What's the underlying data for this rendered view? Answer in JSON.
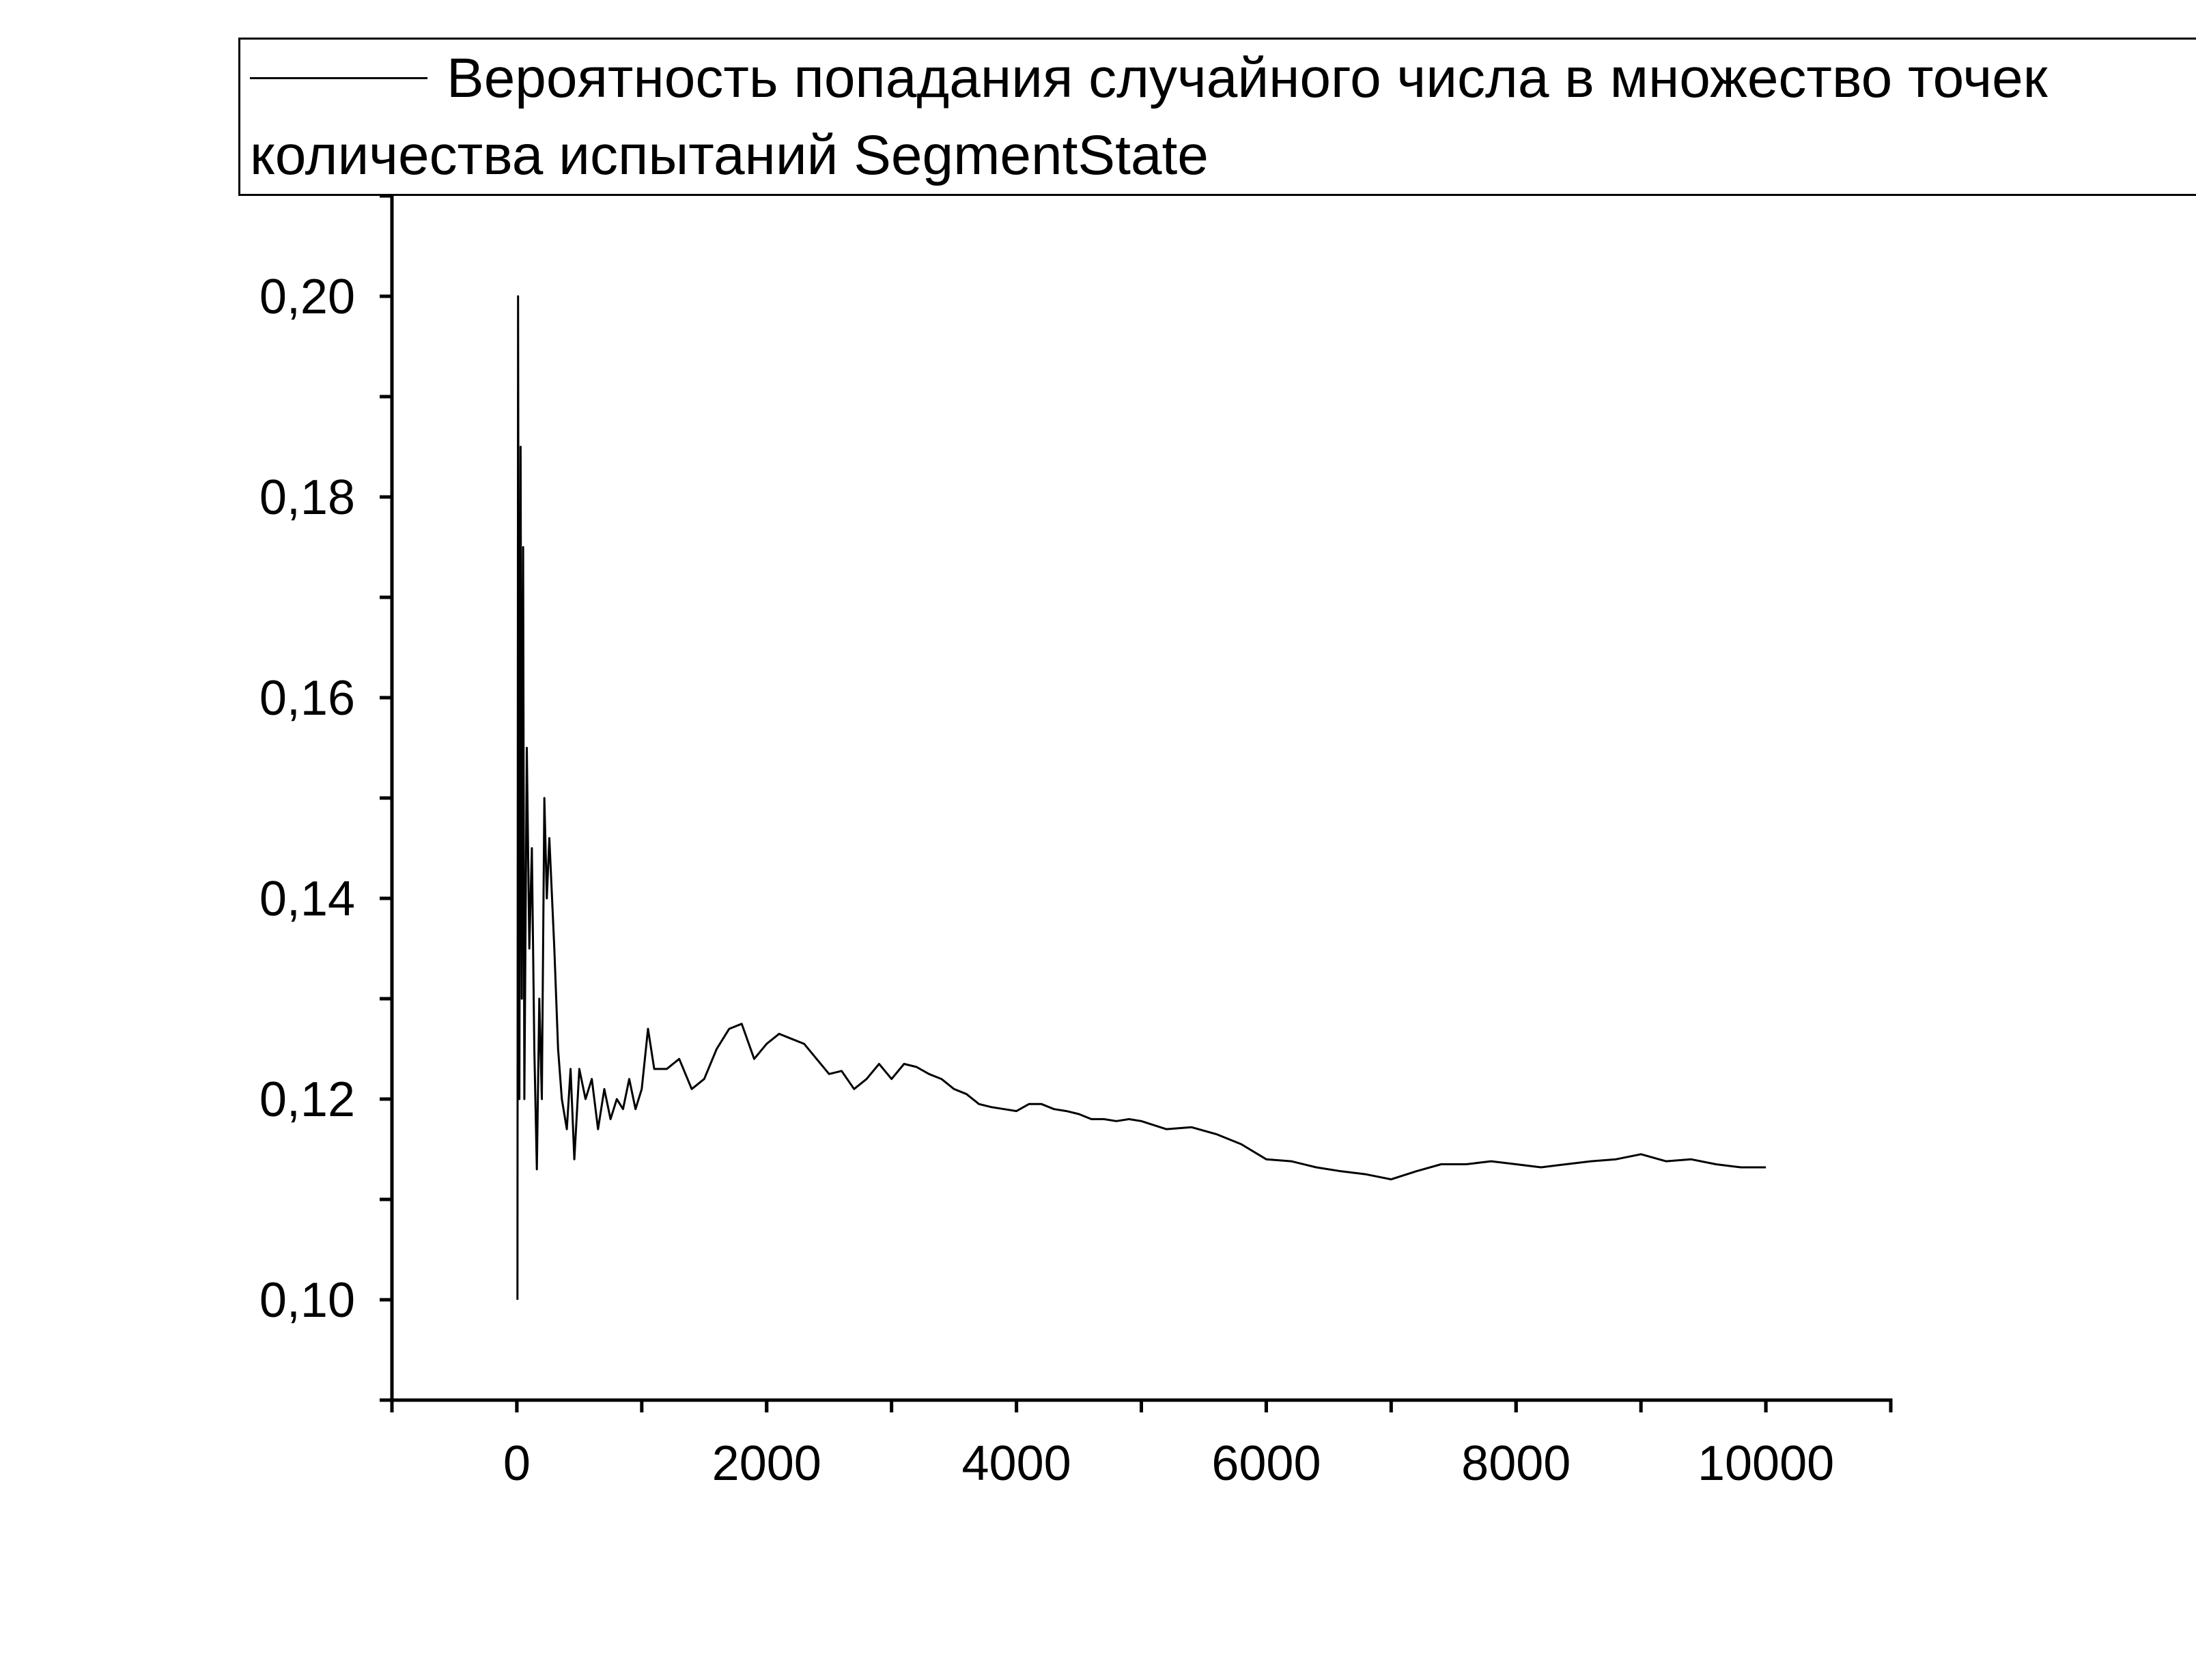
{
  "chart_data": {
    "type": "line",
    "x": [
      5,
      10,
      20,
      30,
      40,
      50,
      60,
      80,
      100,
      120,
      140,
      160,
      180,
      200,
      220,
      240,
      260,
      300,
      330,
      360,
      400,
      430,
      460,
      500,
      550,
      600,
      650,
      700,
      750,
      800,
      850,
      900,
      950,
      1000,
      1050,
      1100,
      1200,
      1300,
      1400,
      1500,
      1600,
      1700,
      1800,
      1900,
      2000,
      2100,
      2200,
      2300,
      2400,
      2500,
      2600,
      2700,
      2800,
      2900,
      3000,
      3100,
      3200,
      3300,
      3400,
      3500,
      3600,
      3700,
      3800,
      3900,
      4000,
      4100,
      4200,
      4300,
      4400,
      4500,
      4600,
      4700,
      4800,
      4900,
      5000,
      5200,
      5400,
      5600,
      5800,
      6000,
      6200,
      6400,
      6600,
      6800,
      7000,
      7200,
      7400,
      7600,
      7800,
      8000,
      8200,
      8400,
      8600,
      8800,
      9000,
      9200,
      9400,
      9600,
      9800,
      10000
    ],
    "series": [
      {
        "name": "Вероятность попадания случайного числа в множество точек количества испытаний SegmentState",
        "color": "#000000",
        "values": [
          0.1,
          0.2,
          0.12,
          0.185,
          0.13,
          0.175,
          0.12,
          0.155,
          0.135,
          0.145,
          0.125,
          0.113,
          0.13,
          0.12,
          0.15,
          0.14,
          0.146,
          0.135,
          0.125,
          0.12,
          0.117,
          0.123,
          0.114,
          0.123,
          0.12,
          0.122,
          0.117,
          0.121,
          0.118,
          0.12,
          0.119,
          0.122,
          0.119,
          0.121,
          0.127,
          0.123,
          0.123,
          0.124,
          0.121,
          0.122,
          0.125,
          0.127,
          0.1275,
          0.124,
          0.1255,
          0.1265,
          0.126,
          0.1255,
          0.124,
          0.1225,
          0.1228,
          0.121,
          0.122,
          0.1235,
          0.122,
          0.1235,
          0.1232,
          0.1225,
          0.122,
          0.121,
          0.1205,
          0.1195,
          0.1192,
          0.119,
          0.1188,
          0.1195,
          0.1195,
          0.119,
          0.1188,
          0.1185,
          0.118,
          0.118,
          0.1178,
          0.118,
          0.1178,
          0.117,
          0.1172,
          0.1165,
          0.1155,
          0.114,
          0.1138,
          0.1132,
          0.1128,
          0.1125,
          0.112,
          0.1128,
          0.1135,
          0.1135,
          0.1138,
          0.1135,
          0.1132,
          0.1135,
          0.1138,
          0.114,
          0.1145,
          0.1138,
          0.114,
          0.1135,
          0.1132,
          0.1132
        ]
      }
    ],
    "xlim": [
      -1000,
      11000
    ],
    "xticks": [
      0,
      2000,
      4000,
      6000,
      8000,
      10000
    ],
    "ylim": [
      0.09,
      0.21
    ],
    "yticks": [
      {
        "value": 0.1,
        "label": "0,10"
      },
      {
        "value": 0.12,
        "label": "0,12"
      },
      {
        "value": 0.14,
        "label": "0,14"
      },
      {
        "value": 0.16,
        "label": "0,16"
      },
      {
        "value": 0.18,
        "label": "0,18"
      },
      {
        "value": 0.2,
        "label": "0,20"
      }
    ],
    "grid": false
  }
}
